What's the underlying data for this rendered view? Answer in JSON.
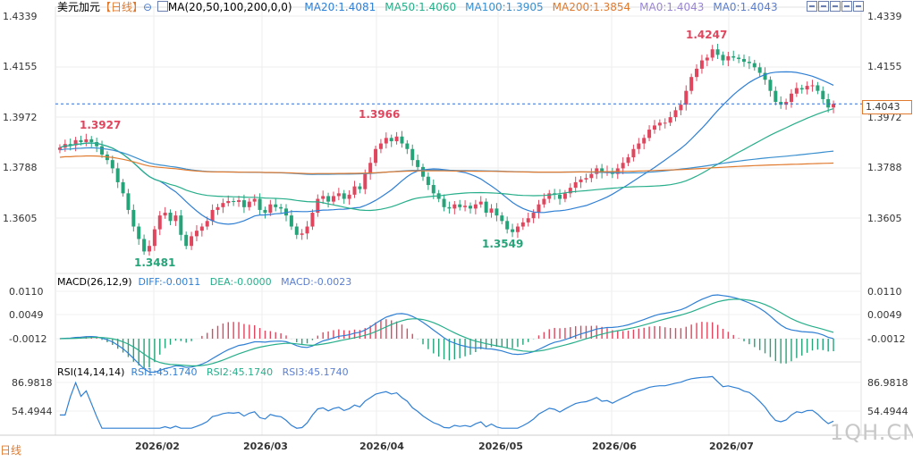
{
  "header": {
    "symbol": "美元加元",
    "period": "【日线】",
    "period_icon": "circle-icon",
    "ma_label": "MA(20,50,100,200,0,0)",
    "ma_items": [
      {
        "text": "MA20:1.4081",
        "color": "#2f7fd4"
      },
      {
        "text": "MA50:1.4060",
        "color": "#27ae8a"
      },
      {
        "text": "MA100:1.3905",
        "color": "#3a8fcf"
      },
      {
        "text": "MA200:1.3854",
        "color": "#e07a2f"
      },
      {
        "text": "MA0:1.4043",
        "color": "#9a86d6"
      },
      {
        "text": "MA0:1.4043",
        "color": "#5b7fd0"
      }
    ]
  },
  "toolbar": [
    "zoom-in-icon",
    "zoom-out-icon",
    "expand-icon",
    "collapse-icon",
    "full-screen-icon"
  ],
  "price_axis_left": [
    "1.4339",
    "1.4155",
    "1.3972",
    "1.3788",
    "1.3605"
  ],
  "price_axis_right": [
    "1.4339",
    "1.4155",
    "1.3972",
    "1.3788",
    "1.3605"
  ],
  "current_price": "1.4043",
  "annotations": [
    {
      "text": "1.3927",
      "kind": "high"
    },
    {
      "text": "1.3966",
      "kind": "high"
    },
    {
      "text": "1.4247",
      "kind": "high"
    },
    {
      "text": "1.3481",
      "kind": "low"
    },
    {
      "text": "1.3549",
      "kind": "low"
    }
  ],
  "macd": {
    "label": "MACD(26,12,9)",
    "diff": "DIFF:-0.0011",
    "dea": "DEA:-0.0000",
    "macd": "MACD:-0.0023",
    "axis_left": [
      "0.0110",
      "0.0049",
      "-0.0012"
    ],
    "axis_right": [
      "0.0110",
      "0.0049",
      "-0.0012"
    ]
  },
  "rsi": {
    "label": "RSI(14,14,14)",
    "rsi1": "RSI1:45.1740",
    "rsi2": "RSI2:45.1740",
    "rsi3": "RSI3:45.1740",
    "axis_left": [
      "86.9818",
      "54.4944"
    ],
    "axis_right": [
      "86.9818",
      "54.4944"
    ]
  },
  "xaxis": [
    "2026/02",
    "2026/03",
    "2026/04",
    "2026/05",
    "2026/06",
    "2026/07"
  ],
  "period_tab": "日线",
  "watermark": "1QH.CN",
  "colors": {
    "up": "#e0465e",
    "down": "#27a37a",
    "grid": "#e6e6e6"
  },
  "chart_data": {
    "type": "candlestick",
    "y_range": [
      1.345,
      1.436
    ],
    "closes": [
      1.3885,
      1.3898,
      1.3893,
      1.3912,
      1.3905,
      1.3915,
      1.3905,
      1.389,
      1.386,
      1.384,
      1.381,
      1.376,
      1.372,
      1.366,
      1.36,
      1.3555,
      1.351,
      1.353,
      1.359,
      1.364,
      1.365,
      1.362,
      1.364,
      1.357,
      1.353,
      1.3565,
      1.3585,
      1.36,
      1.362,
      1.366,
      1.367,
      1.3685,
      1.3692,
      1.3689,
      1.3695,
      1.367,
      1.369,
      1.37,
      1.366,
      1.365,
      1.368,
      1.367,
      1.3665,
      1.364,
      1.36,
      1.357,
      1.3575,
      1.36,
      1.365,
      1.37,
      1.371,
      1.369,
      1.371,
      1.372,
      1.37,
      1.3715,
      1.3745,
      1.3735,
      1.379,
      1.383,
      1.388,
      1.39,
      1.392,
      1.3908,
      1.3925,
      1.39,
      1.388,
      1.384,
      1.3815,
      1.378,
      1.375,
      1.372,
      1.37,
      1.367,
      1.3665,
      1.368,
      1.367,
      1.3675,
      1.3665,
      1.368,
      1.369,
      1.365,
      1.3665,
      1.364,
      1.362,
      1.359,
      1.358,
      1.36,
      1.3615,
      1.363,
      1.365,
      1.368,
      1.37,
      1.372,
      1.3715,
      1.37,
      1.372,
      1.374,
      1.376,
      1.377,
      1.3775,
      1.379,
      1.381,
      1.3795,
      1.38,
      1.379,
      1.381,
      1.383,
      1.385,
      1.388,
      1.39,
      1.392,
      1.395,
      1.3965,
      1.3975,
      1.3975,
      1.3995,
      1.402,
      1.404,
      1.409,
      1.414,
      1.417,
      1.42,
      1.421,
      1.424,
      1.422,
      1.42,
      1.4215,
      1.421,
      1.4205,
      1.4195,
      1.419,
      1.4175,
      1.4155,
      1.413,
      1.409,
      1.405,
      1.404,
      1.405,
      1.408,
      1.41,
      1.4095,
      1.4108,
      1.411,
      1.409,
      1.406,
      1.403,
      1.4043
    ]
  }
}
